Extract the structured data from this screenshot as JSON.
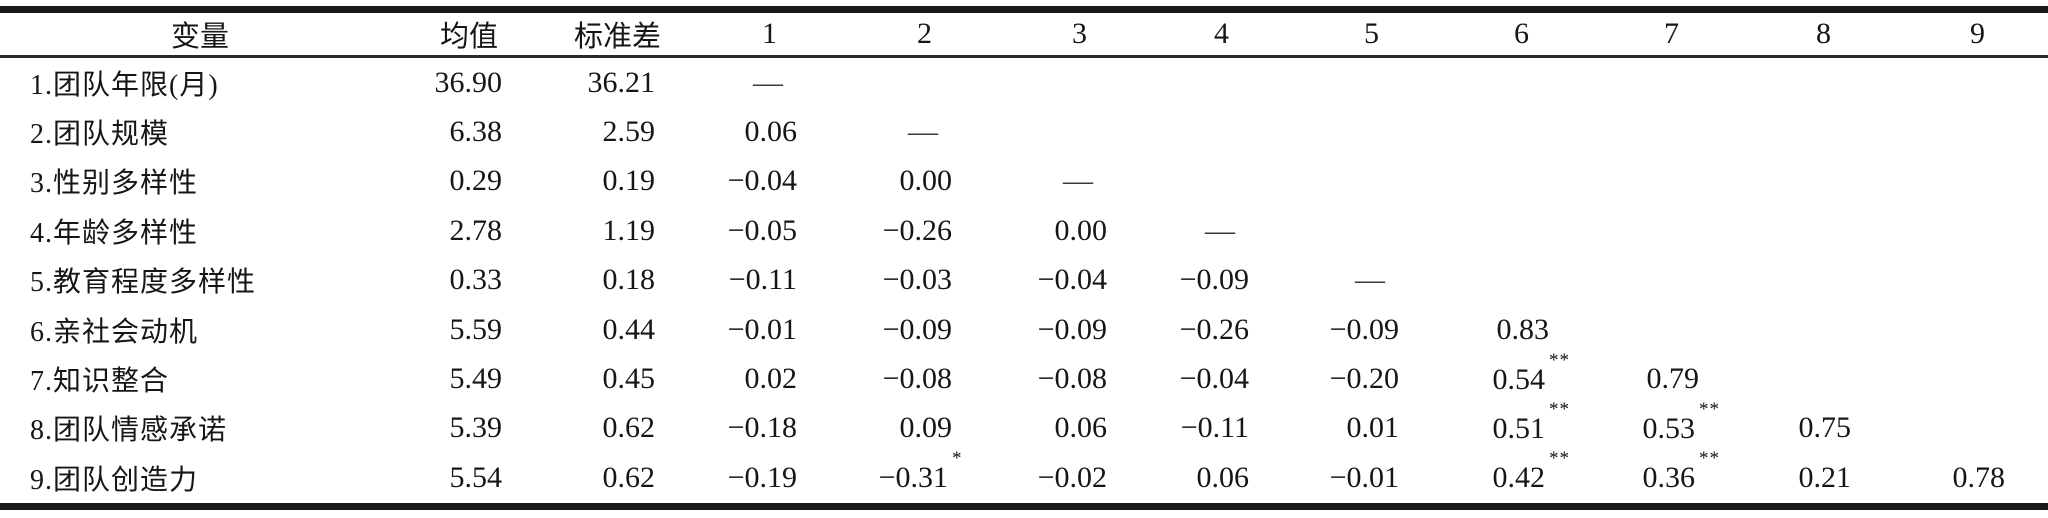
{
  "colors": {
    "background": "#ffffff",
    "text": "#161616",
    "rule": "#1a1a1a"
  },
  "table": {
    "headers": [
      "变量",
      "均值",
      "标准差",
      "1",
      "2",
      "3",
      "4",
      "5",
      "6",
      "7",
      "8",
      "9"
    ],
    "rows": [
      {
        "label": "1.团队年限(月)",
        "mean": "36.90",
        "sd": "36.21",
        "cells": [
          "—",
          "",
          "",
          "",
          "",
          "",
          "",
          "",
          ""
        ]
      },
      {
        "label": "2.团队规模",
        "mean": "6.38",
        "sd": "2.59",
        "cells": [
          "0.06",
          "—",
          "",
          "",
          "",
          "",
          "",
          "",
          ""
        ]
      },
      {
        "label": "3.性别多样性",
        "mean": "0.29",
        "sd": "0.19",
        "cells": [
          "−0.04",
          "0.00",
          "—",
          "",
          "",
          "",
          "",
          "",
          ""
        ]
      },
      {
        "label": "4.年龄多样性",
        "mean": "2.78",
        "sd": "1.19",
        "cells": [
          "−0.05",
          "−0.26",
          "0.00",
          "—",
          "",
          "",
          "",
          "",
          ""
        ]
      },
      {
        "label": "5.教育程度多样性",
        "mean": "0.33",
        "sd": "0.18",
        "cells": [
          "−0.11",
          "−0.03",
          "−0.04",
          "−0.09",
          "—",
          "",
          "",
          "",
          ""
        ]
      },
      {
        "label": "6.亲社会动机",
        "mean": "5.59",
        "sd": "0.44",
        "cells": [
          "−0.01",
          "−0.09",
          "−0.09",
          "−0.26",
          "−0.09",
          "0.83",
          "",
          "",
          ""
        ]
      },
      {
        "label": "7.知识整合",
        "mean": "5.49",
        "sd": "0.45",
        "cells": [
          "0.02",
          "−0.08",
          "−0.08",
          "−0.04",
          "−0.20",
          "0.54**",
          "0.79",
          "",
          ""
        ]
      },
      {
        "label": "8.团队情感承诺",
        "mean": "5.39",
        "sd": "0.62",
        "cells": [
          "−0.18",
          "0.09",
          "0.06",
          "−0.11",
          "0.01",
          "0.51**",
          "0.53**",
          "0.75",
          ""
        ]
      },
      {
        "label": "9.团队创造力",
        "mean": "5.54",
        "sd": "0.62",
        "cells": [
          "−0.19",
          "−0.31*",
          "−0.02",
          "0.06",
          "−0.01",
          "0.42**",
          "0.36**",
          "0.21",
          "0.78"
        ]
      }
    ]
  }
}
